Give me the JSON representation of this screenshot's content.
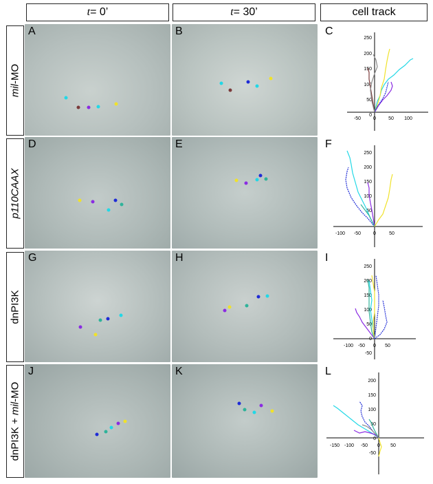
{
  "headers": {
    "t0_prefix": "t",
    "t0_suffix": " = 0’",
    "t30_prefix": "t",
    "t30_suffix": " = 30’",
    "track": "cell track"
  },
  "rows": [
    {
      "label_italic": "mil",
      "label_rest": "-MO",
      "letters": [
        "A",
        "B",
        "C"
      ]
    },
    {
      "label_italic": "p110CAAX",
      "label_rest": "",
      "letters": [
        "D",
        "E",
        "F"
      ]
    },
    {
      "label_italic": "",
      "label_rest": "dnPI3K",
      "letters": [
        "G",
        "H",
        "I"
      ]
    },
    {
      "label_prefix": "dnPI3K + ",
      "label_italic": "mil",
      "label_rest": "-MO",
      "letters": [
        "J",
        "K",
        "L"
      ]
    }
  ],
  "colors": {
    "blue": "#1e2bd6",
    "purple": "#8a2be2",
    "cyan": "#22d8e6",
    "teal": "#2fb39a",
    "yellow": "#f0e22a",
    "brown": "#7a3a3a",
    "gray": "#8a8a8a"
  },
  "track_axes": [
    {
      "x_ticks": [
        "-50",
        "0",
        "50",
        "100"
      ],
      "y_ticks": [
        "250",
        "200",
        "150",
        "100",
        "50",
        "0"
      ]
    },
    {
      "x_ticks": [
        "-100",
        "-50",
        "0",
        "50"
      ],
      "y_ticks": [
        "250",
        "200",
        "150",
        "100",
        "50"
      ]
    },
    {
      "x_ticks": [
        "-100",
        "-50",
        "0",
        "50"
      ],
      "y_ticks": [
        "250",
        "200",
        "150",
        "100",
        "50",
        "0",
        "-50"
      ]
    },
    {
      "x_ticks": [
        "-150",
        "-100",
        "-50",
        "0",
        "50"
      ],
      "y_ticks": [
        "200",
        "150",
        "100",
        "50",
        "0",
        "-50"
      ]
    }
  ]
}
